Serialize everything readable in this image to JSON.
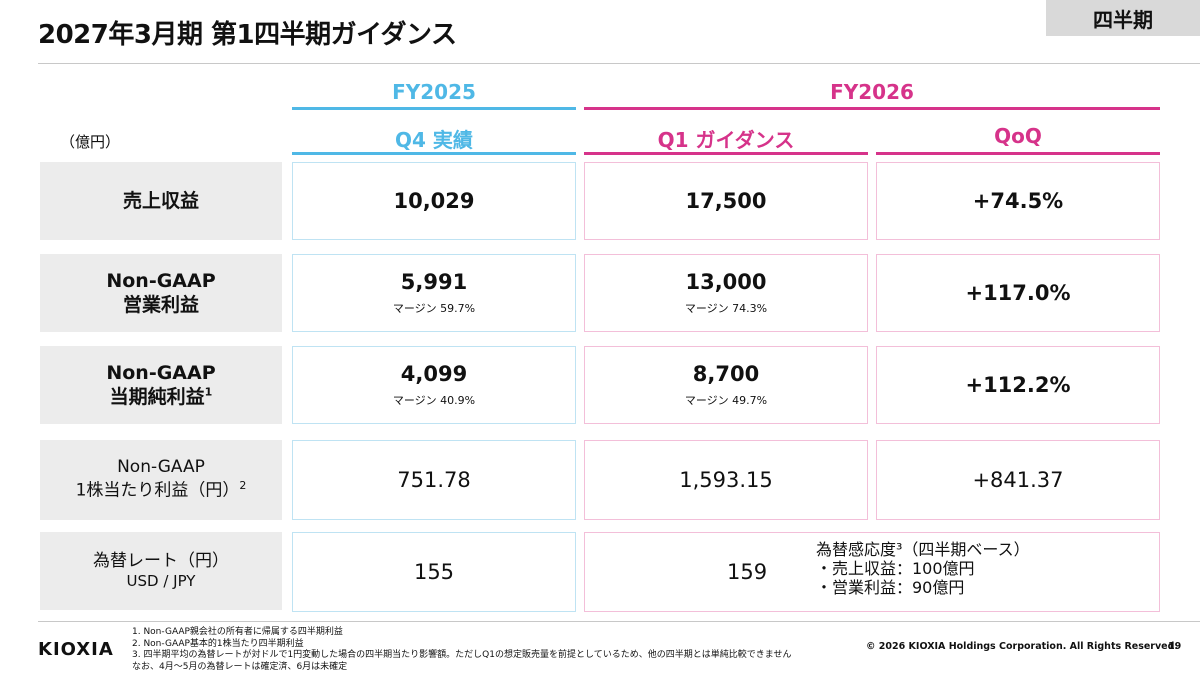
{
  "header": {
    "title": "2027年3月期 第1四半期ガイダンス",
    "badge": "四半期"
  },
  "columns": {
    "fy2025": "FY2025",
    "fy2026": "FY2026",
    "q4": "Q4 実績",
    "q1": "Q1 ガイダンス",
    "qoq": "QoQ"
  },
  "unit": "（億円）",
  "rows": {
    "revenue": {
      "label": "売上収益",
      "q4": "10,029",
      "q1": "17,500",
      "qoq": "+74.5%"
    },
    "op": {
      "label1": "Non-GAAP",
      "label2": "営業利益",
      "q4": "5,991",
      "q4_margin": "マージン 59.7%",
      "q1": "13,000",
      "q1_margin": "マージン 74.3%",
      "qoq": "+117.0%"
    },
    "ni": {
      "label1": "Non-GAAP",
      "label2": "当期純利益",
      "note": "1",
      "q4": "4,099",
      "q4_margin": "マージン 40.9%",
      "q1": "8,700",
      "q1_margin": "マージン 49.7%",
      "qoq": "+112.2%"
    },
    "eps": {
      "label1": "Non-GAAP",
      "label2": "1株当たり利益（円）",
      "note": "2",
      "q4": "751.78",
      "q1": "1,593.15",
      "qoq": "+841.37"
    },
    "fx": {
      "label1": "為替レート（円）",
      "label2": "USD / JPY",
      "q4": "155",
      "q1": "159",
      "sens_title": "為替感応度³（四半期ベース）",
      "sens_revenue": "・売上収益：100億円",
      "sens_op": "・営業利益：90億円"
    }
  },
  "footer": {
    "logo": "KIOXIA",
    "notes": [
      "1. Non-GAAP親会社の所有者に帰属する四半期利益",
      "2. Non-GAAP基本的1株当たり四半期利益",
      "3. 四半期平均の為替レートが対ドルで1円変動した場合の四半期当たり影響額。ただしQ1の想定販売量を前提としているため、他の四半期とは単純比較できません",
      "なお、4月～5月の為替レートは確定済、6月は未確定"
    ],
    "copyright": "© 2026 KIOXIA Holdings Corporation. All Rights Reserved.",
    "page": "19"
  }
}
